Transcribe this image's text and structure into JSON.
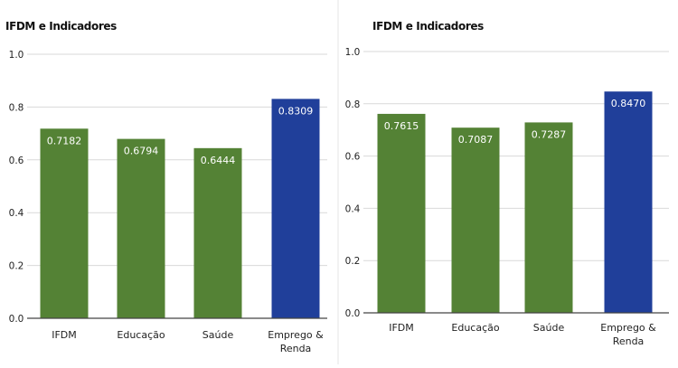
{
  "colors": {
    "bar": "#548235",
    "highlight": "#203f9a",
    "grid": "#d9d9d9",
    "axis": "#444444",
    "text": "#222222",
    "label_text": "#ffffff"
  },
  "chart_data": [
    {
      "type": "bar",
      "title": "IFDM e Indicadores",
      "categories": [
        "IFDM",
        "Educação",
        "Saúde",
        "Emprego & Renda"
      ],
      "category_lines": [
        [
          "IFDM"
        ],
        [
          "Educação"
        ],
        [
          "Saúde"
        ],
        [
          "Emprego &",
          "Renda"
        ]
      ],
      "values": [
        0.7182,
        0.6794,
        0.6444,
        0.8309
      ],
      "value_labels": [
        "0.7182",
        "0.6794",
        "0.6444",
        "0.8309"
      ],
      "highlight_index": 3,
      "ylim": [
        0,
        1
      ],
      "yticks": [
        "0.0",
        "0.2",
        "0.4",
        "0.6",
        "0.8",
        "1.0"
      ],
      "grid": true,
      "xlabel": "",
      "ylabel": ""
    },
    {
      "type": "bar",
      "title": "IFDM e Indicadores",
      "categories": [
        "IFDM",
        "Educação",
        "Saúde",
        "Emprego & Renda"
      ],
      "category_lines": [
        [
          "IFDM"
        ],
        [
          "Educação"
        ],
        [
          "Saúde"
        ],
        [
          "Emprego &",
          "Renda"
        ]
      ],
      "values": [
        0.7615,
        0.7087,
        0.7287,
        0.847
      ],
      "value_labels": [
        "0.7615",
        "0.7087",
        "0.7287",
        "0.8470"
      ],
      "highlight_index": 3,
      "ylim": [
        0,
        1
      ],
      "yticks": [
        "0.0",
        "0.2",
        "0.4",
        "0.6",
        "0.8",
        "1.0"
      ],
      "grid": true,
      "xlabel": "",
      "ylabel": ""
    }
  ]
}
